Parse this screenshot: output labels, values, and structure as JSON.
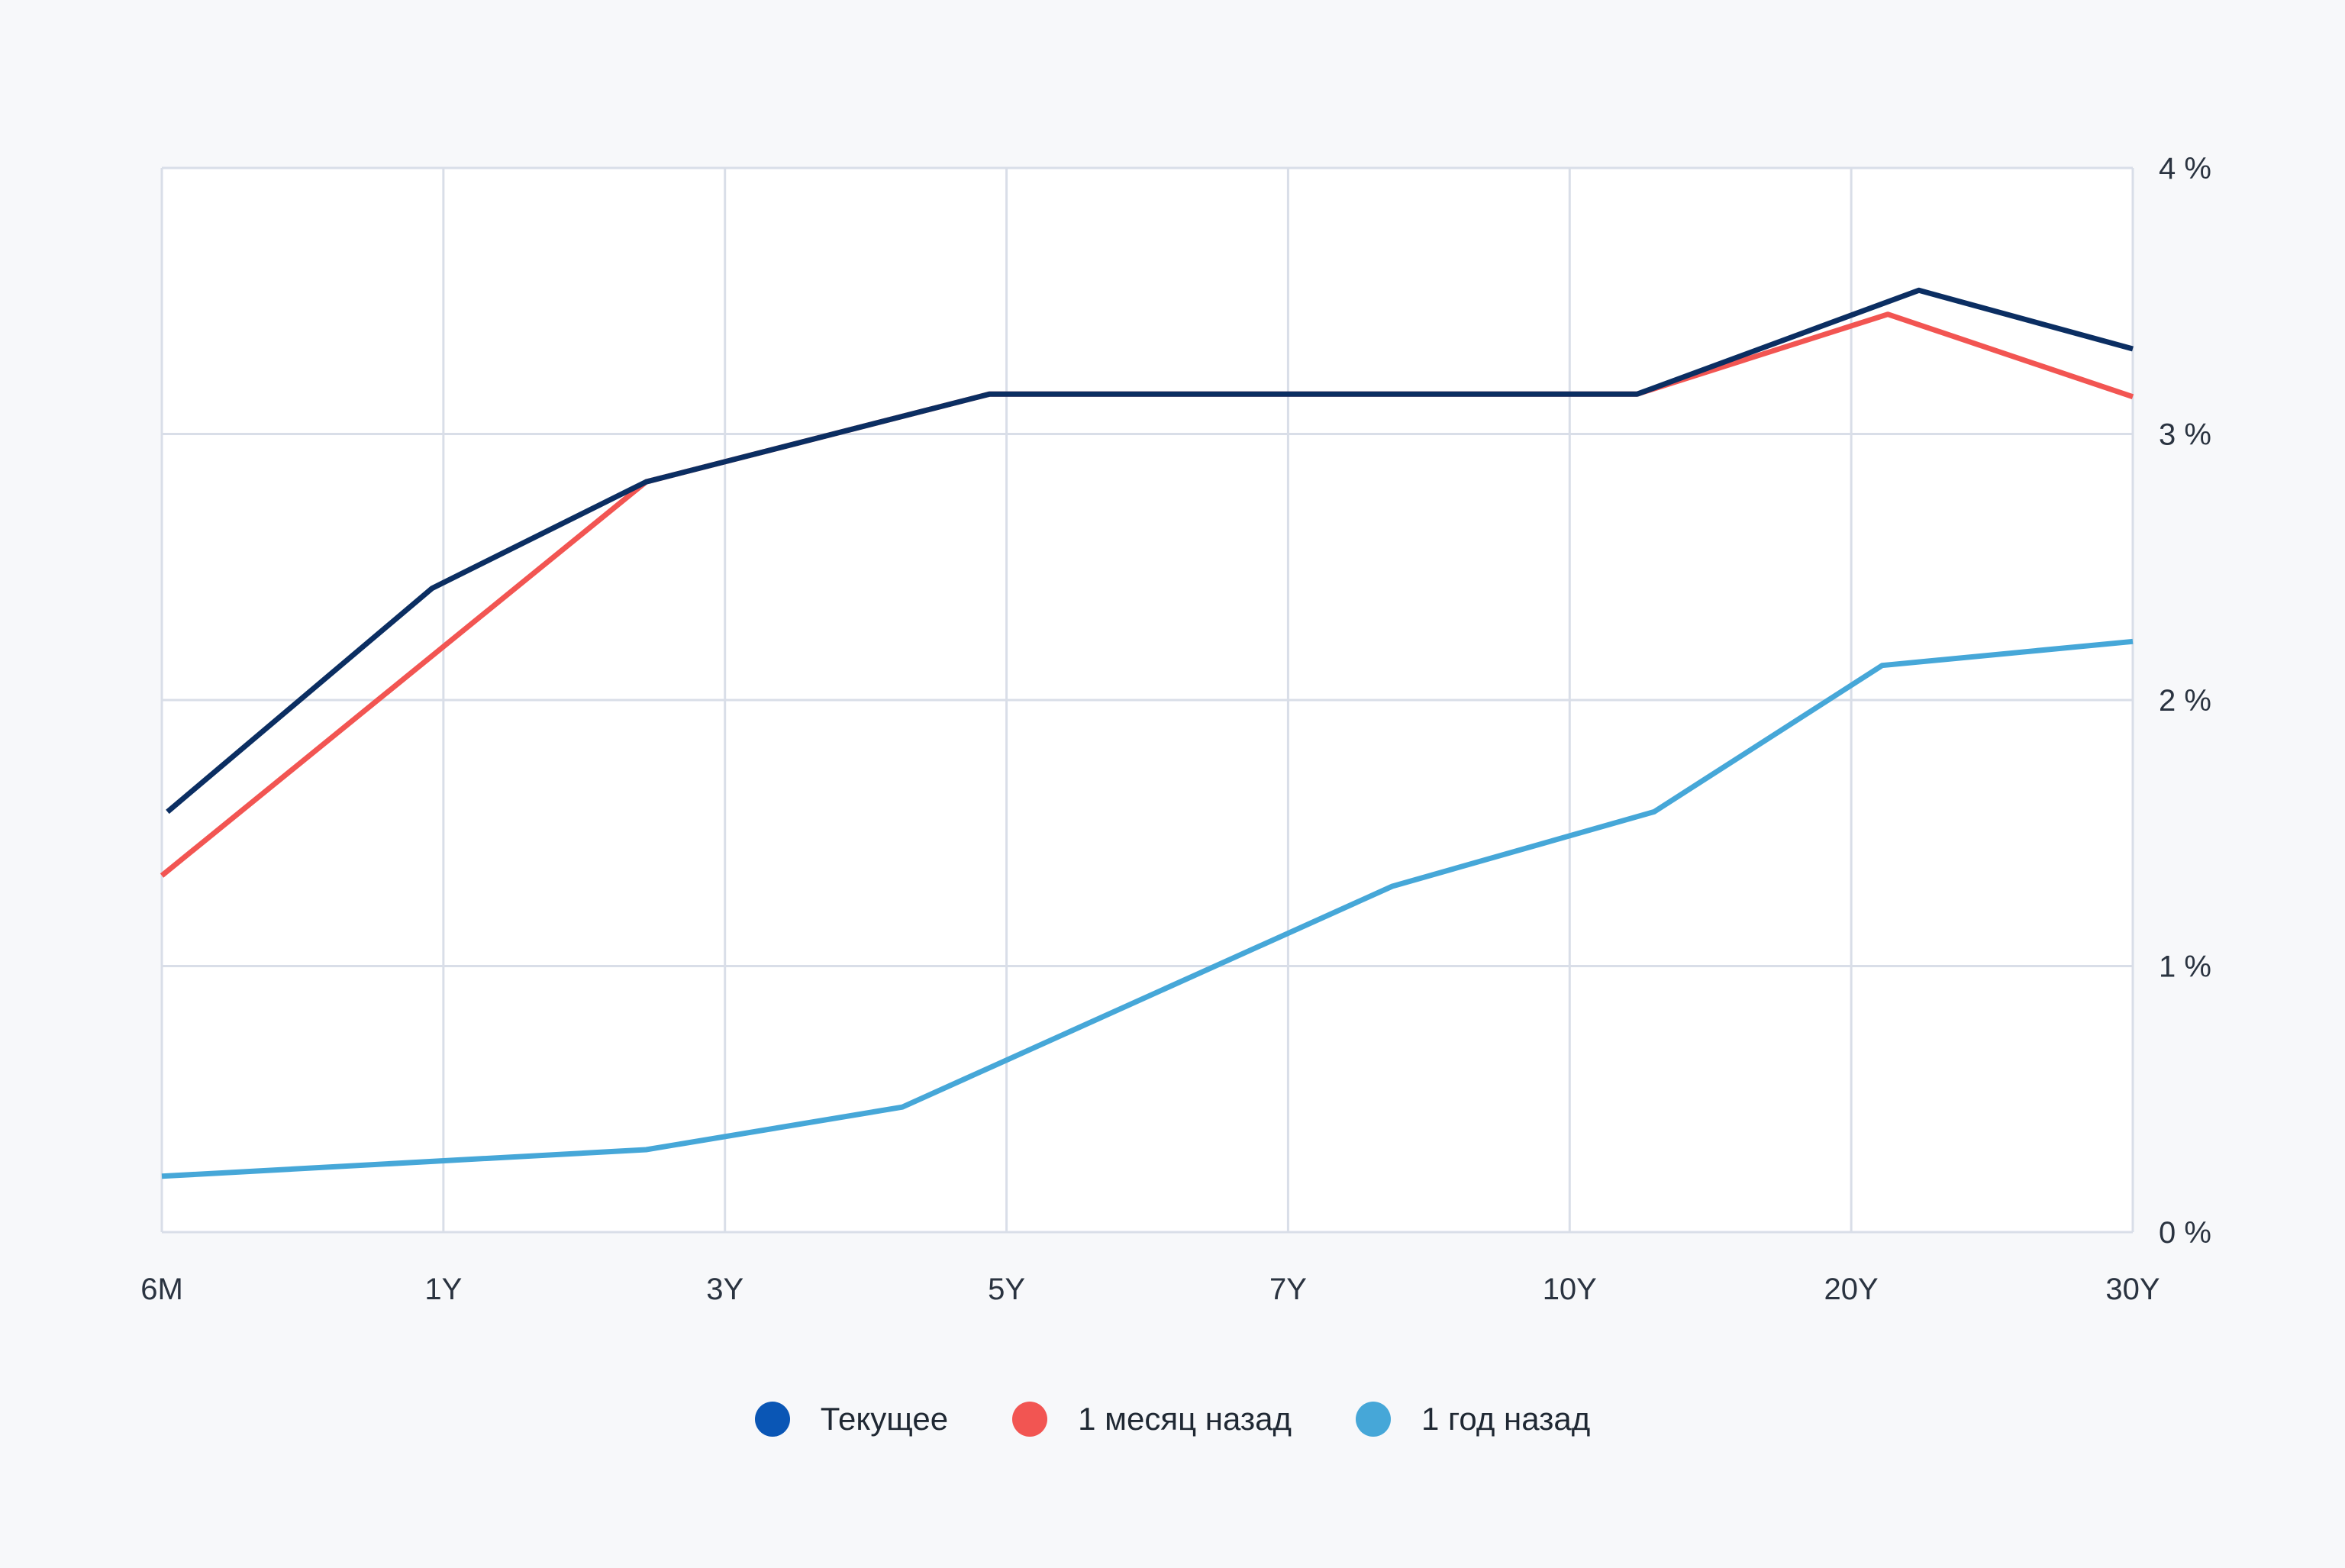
{
  "chart_data": {
    "type": "line",
    "categories": [
      "6M",
      "1Y",
      "3Y",
      "5Y",
      "7Y",
      "10Y",
      "20Y",
      "30Y"
    ],
    "y_axis": {
      "position": "right",
      "ylim": [
        0,
        4
      ],
      "ticks": [
        0,
        1,
        2,
        3,
        4
      ],
      "tick_labels": [
        "0 %",
        "1 %",
        "2 %",
        "3 %",
        "4 %"
      ]
    },
    "grid": true,
    "legend_placement": "bottom-center",
    "series": [
      {
        "name": "Текущее",
        "color": "#0b2e62",
        "legend_color": "#0a56b5",
        "points": [
          [
            0.02,
            1.58
          ],
          [
            0.96,
            2.42
          ],
          [
            1.72,
            2.82
          ],
          [
            2.94,
            3.15
          ],
          [
            5.24,
            3.15
          ],
          [
            6.24,
            3.54
          ],
          [
            7.0,
            3.32
          ]
        ]
      },
      {
        "name": "1 месяц назад",
        "color": "#f25552",
        "legend_color": "#f25552",
        "points": [
          [
            0.0,
            1.34
          ],
          [
            1.72,
            2.82
          ],
          [
            2.94,
            3.15
          ],
          [
            5.24,
            3.15
          ],
          [
            6.13,
            3.45
          ],
          [
            7.0,
            3.14
          ]
        ]
      },
      {
        "name": "1 год назад",
        "color": "#46a7d8",
        "legend_color": "#46a7d8",
        "points": [
          [
            0.0,
            0.21
          ],
          [
            1.72,
            0.31
          ],
          [
            2.63,
            0.47
          ],
          [
            4.37,
            1.3
          ],
          [
            5.3,
            1.58
          ],
          [
            6.11,
            2.13
          ],
          [
            7.0,
            2.22
          ]
        ]
      }
    ]
  }
}
